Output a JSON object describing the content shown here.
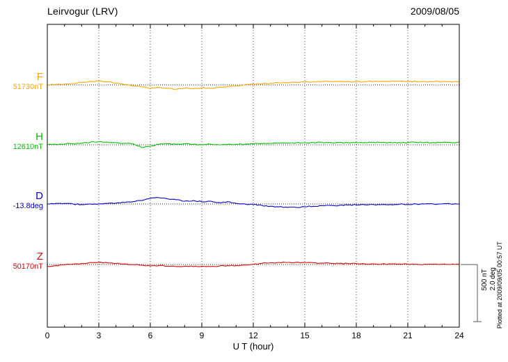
{
  "header": {
    "title": "Leirvogur (LRV)",
    "date": "2009/08/05"
  },
  "plotted_at": "Plotted at 2009/09/05 00:57 UT",
  "chart_data": {
    "type": "line",
    "title": "Leirvogur (LRV)",
    "subtitle": "2009/08/05",
    "xlabel": "U T (hour)",
    "x_start": 0,
    "x_step": 0.5,
    "x_range": [
      0,
      24
    ],
    "x_ticks": [
      0,
      3,
      6,
      9,
      12,
      15,
      18,
      21,
      24
    ],
    "grid": "dotted vertical gridlines every 3 hours; dotted horizontal baseline for each trace",
    "scale_bar": {
      "nt": "500 nT",
      "deg": "2.0 deg",
      "nt_span": 500,
      "deg_span": 2.0
    },
    "series": [
      {
        "name": "F",
        "label": "F",
        "baseline_label": "51730nT",
        "unit": "nT",
        "scale_span": 500,
        "color": "#FFA500",
        "values": [
          0,
          4,
          8,
          12,
          22,
          32,
          35,
          28,
          15,
          2,
          -8,
          -18,
          -30,
          -22,
          -28,
          -38,
          -28,
          -34,
          -24,
          -30,
          -20,
          -14,
          -6,
          0,
          6,
          10,
          14,
          18,
          20,
          24,
          26,
          28,
          30,
          30,
          30,
          30,
          28,
          30,
          30,
          32,
          30,
          32,
          30,
          30,
          30,
          28,
          30,
          28,
          30
        ]
      },
      {
        "name": "H",
        "label": "H",
        "baseline_label": "12610nT",
        "unit": "nT",
        "scale_span": 500,
        "color": "#00C000",
        "values": [
          0,
          4,
          6,
          10,
          14,
          22,
          28,
          24,
          18,
          14,
          8,
          -24,
          -12,
          4,
          10,
          4,
          10,
          4,
          0,
          5,
          0,
          4,
          5,
          5,
          8,
          10,
          12,
          14,
          15,
          18,
          18,
          20,
          20,
          20,
          20,
          20,
          20,
          20,
          22,
          20,
          22,
          20,
          20,
          22,
          20,
          20,
          22,
          20,
          25
        ]
      },
      {
        "name": "D",
        "label": "D",
        "baseline_label": "-13.8deg",
        "unit": "deg",
        "scale_span": 2.0,
        "color": "#0000CC",
        "values": [
          0.0,
          0.02,
          0.02,
          0.0,
          -0.02,
          0.0,
          0.0,
          0.02,
          0.03,
          0.05,
          0.08,
          0.12,
          0.2,
          0.22,
          0.18,
          0.15,
          0.1,
          0.12,
          0.08,
          0.1,
          0.05,
          0.08,
          0.02,
          0.0,
          -0.02,
          -0.05,
          -0.08,
          -0.1,
          -0.12,
          -0.12,
          -0.1,
          -0.08,
          -0.06,
          -0.05,
          -0.05,
          -0.04,
          -0.03,
          -0.03,
          -0.02,
          -0.02,
          -0.02,
          -0.01,
          -0.01,
          0.0,
          0.0,
          0.0,
          0.0,
          0.0,
          0.0
        ]
      },
      {
        "name": "Z",
        "label": "Z",
        "baseline_label": "50170nT",
        "unit": "nT",
        "scale_span": 500,
        "color": "#DD0000",
        "values": [
          -15,
          -10,
          -2,
          4,
          10,
          18,
          20,
          16,
          10,
          5,
          0,
          -4,
          -12,
          -8,
          -14,
          -18,
          -14,
          -18,
          -14,
          -18,
          -14,
          -10,
          -8,
          -4,
          2,
          10,
          15,
          18,
          18,
          20,
          18,
          15,
          12,
          10,
          10,
          8,
          8,
          6,
          6,
          5,
          5,
          4,
          4,
          3,
          3,
          2,
          2,
          0,
          0
        ]
      }
    ]
  }
}
